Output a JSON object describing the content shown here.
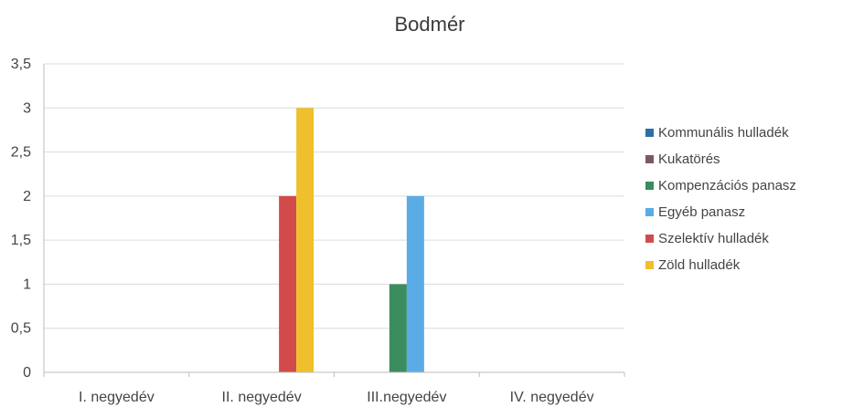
{
  "chart_data": {
    "type": "bar",
    "title": "Bodmér",
    "xlabel": "",
    "ylabel": "",
    "categories": [
      "I. negyedév",
      "II. negyedév",
      "III.negyedév",
      "IV. negyedév"
    ],
    "y_ticks": [
      "0",
      "0,5",
      "1",
      "1,5",
      "2",
      "2,5",
      "3",
      "3,5"
    ],
    "ylim": [
      0,
      3.5
    ],
    "grid": true,
    "legend_position": "right",
    "series": [
      {
        "name": "Kommunális hulladék",
        "color": "#2e6fa8",
        "values": [
          0,
          0,
          0,
          0
        ]
      },
      {
        "name": "Kukatörés",
        "color": "#7a5a5f",
        "values": [
          0,
          0,
          0,
          0
        ]
      },
      {
        "name": "Kompenzációs panasz",
        "color": "#3b8c5f",
        "values": [
          0,
          0,
          1,
          0
        ]
      },
      {
        "name": "Egyéb panasz",
        "color": "#5aace6",
        "values": [
          0,
          0,
          2,
          0
        ]
      },
      {
        "name": "Szelektív hulladék",
        "color": "#d14b4b",
        "values": [
          0,
          2,
          0,
          0
        ]
      },
      {
        "name": "Zöld hulladék",
        "color": "#f0bf2c",
        "values": [
          0,
          3,
          0,
          0
        ]
      }
    ]
  }
}
